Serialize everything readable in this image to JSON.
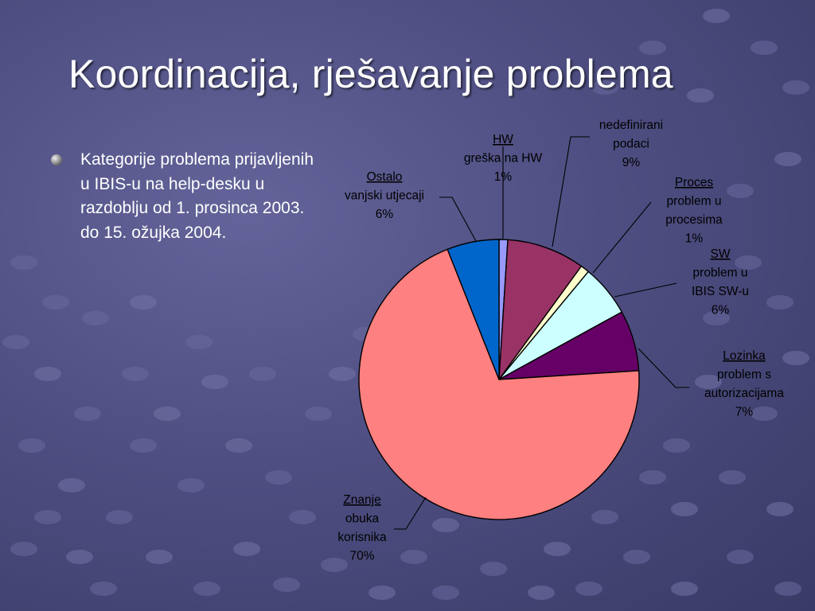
{
  "slide": {
    "title": "Koordinacija, rješavanje problema",
    "bullet": "Kategorije problema prijavljenih u IBIS-u na help-desku u razdoblju od 1. prosinca 2003. do 15. ožujka 2004."
  },
  "chart_data": {
    "type": "pie",
    "start_angle_deg": 0,
    "direction": "clockwise",
    "legend": "none",
    "slices": [
      {
        "category": "HW",
        "description": "greška na HW",
        "value": 1,
        "value_label": "1%",
        "color": "#9999ff"
      },
      {
        "category": "",
        "description": "nedefinirani podaci",
        "value": 9,
        "value_label": "9%",
        "color": "#993366"
      },
      {
        "category": "Proces",
        "description": "problem u procesima",
        "value": 1,
        "value_label": "1%",
        "color": "#ffffcc"
      },
      {
        "category": "SW",
        "description": "problem u IBIS SW-u",
        "value": 6,
        "value_label": "6%",
        "color": "#ccffff"
      },
      {
        "category": "Lozinka",
        "description": "problem s autorizacijama",
        "value": 7,
        "value_label": "7%",
        "color": "#660066"
      },
      {
        "category": "Znanje",
        "description": "obuka korisnika",
        "value": 70,
        "value_label": "70%",
        "color": "#ff8080"
      },
      {
        "category": "Ostalo",
        "description": "vanjski utjecaji",
        "value": 6,
        "value_label": "6%",
        "color": "#0066cc"
      }
    ]
  }
}
